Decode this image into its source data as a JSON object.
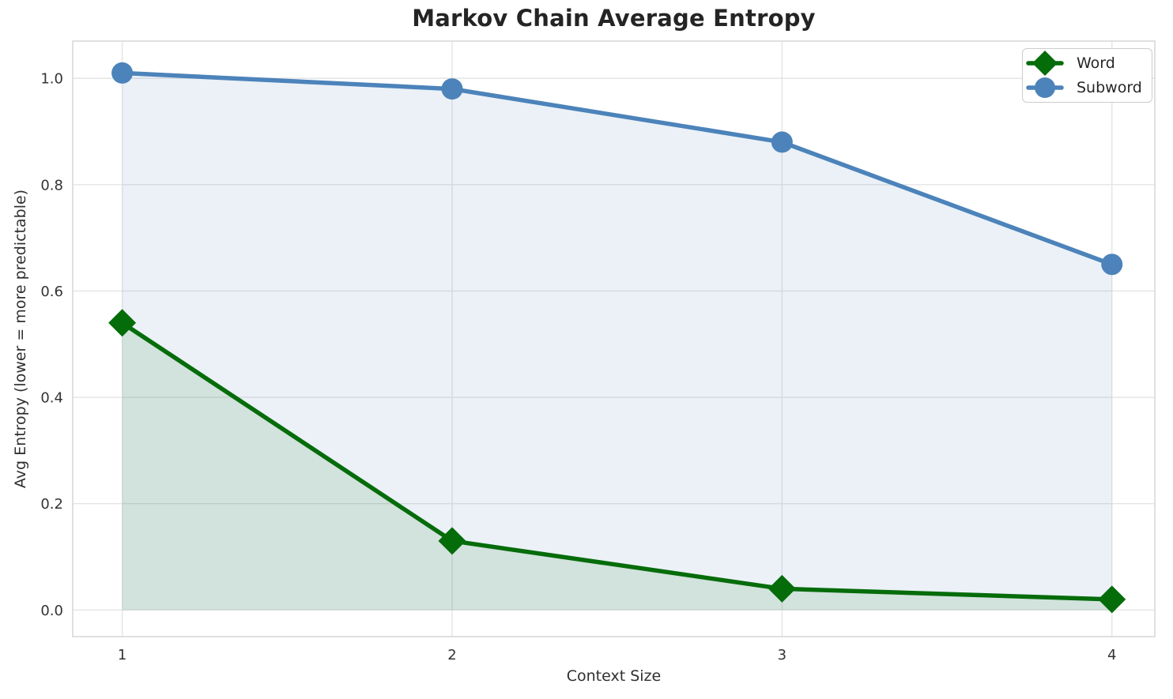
{
  "chart_data": {
    "type": "line",
    "title": "Markov Chain Average Entropy",
    "xlabel": "Context Size",
    "ylabel": "Avg Entropy (lower = more predictable)",
    "x": [
      1,
      2,
      3,
      4
    ],
    "series": [
      {
        "name": "Word",
        "values": [
          0.54,
          0.13,
          0.04,
          0.02
        ],
        "color": "#056c0a",
        "marker": "diamond",
        "fill_alpha": 0.11
      },
      {
        "name": "Subword",
        "values": [
          1.01,
          0.98,
          0.88,
          0.65
        ],
        "color": "#4c83ba",
        "marker": "circle",
        "fill_alpha": 0.11
      }
    ],
    "xticks": [
      "1",
      "2",
      "3",
      "4"
    ],
    "yticks": [
      "0.0",
      "0.2",
      "0.4",
      "0.6",
      "0.8",
      "1.0"
    ],
    "xlim": [
      0.85,
      4.13
    ],
    "ylim": [
      -0.05,
      1.07
    ],
    "grid": true,
    "area_fill_baseline": 0,
    "legend_position": "upper right",
    "line_width": 5.5,
    "marker_size": 14,
    "grid_color": "#e4e4e4",
    "spine_color": "#d9d9d9",
    "tick_color": "#333333"
  }
}
